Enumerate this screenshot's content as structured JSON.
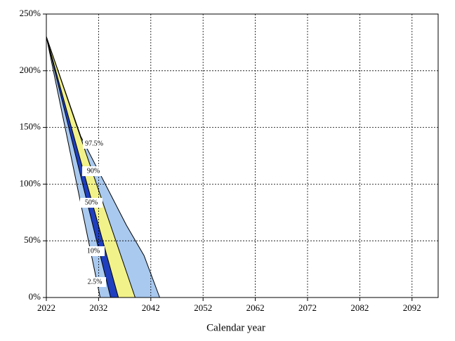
{
  "chart_data": {
    "type": "fan",
    "x_label": "Calendar year",
    "xlim": [
      2022,
      2097
    ],
    "xticks": [
      2022,
      2032,
      2042,
      2052,
      2062,
      2072,
      2082,
      2092
    ],
    "ylim": [
      0,
      250
    ],
    "yticks": [
      {
        "value": 0,
        "label": "0%"
      },
      {
        "value": 50,
        "label": "50%"
      },
      {
        "value": 100,
        "label": "100%"
      },
      {
        "value": 150,
        "label": "150%"
      },
      {
        "value": 200,
        "label": "200%"
      },
      {
        "value": 250,
        "label": "250%"
      }
    ],
    "grid": true,
    "band_colors": [
      "#a9c9ef",
      "#1f3fbf",
      "#f2f28a",
      "#a9c9ef"
    ],
    "series": [
      {
        "name": "2.5%",
        "color": "#000000",
        "x": [
          2022,
          2032.3
        ],
        "values": [
          230,
          0
        ]
      },
      {
        "name": "10%",
        "color": "#000000",
        "x": [
          2022,
          2034.3
        ],
        "values": [
          230,
          0
        ]
      },
      {
        "name": "50%",
        "color": "#000000",
        "x": [
          2022,
          2035.8
        ],
        "values": [
          230,
          0
        ]
      },
      {
        "name": "90%",
        "color": "#000000",
        "x": [
          2022,
          2039
        ],
        "values": [
          230,
          0
        ]
      },
      {
        "name": "97.5%",
        "color": "#000000",
        "x": [
          2022,
          2028.6,
          2037.3,
          2040.7,
          2043.7
        ],
        "values": [
          230,
          142,
          64,
          37,
          0
        ]
      }
    ]
  }
}
